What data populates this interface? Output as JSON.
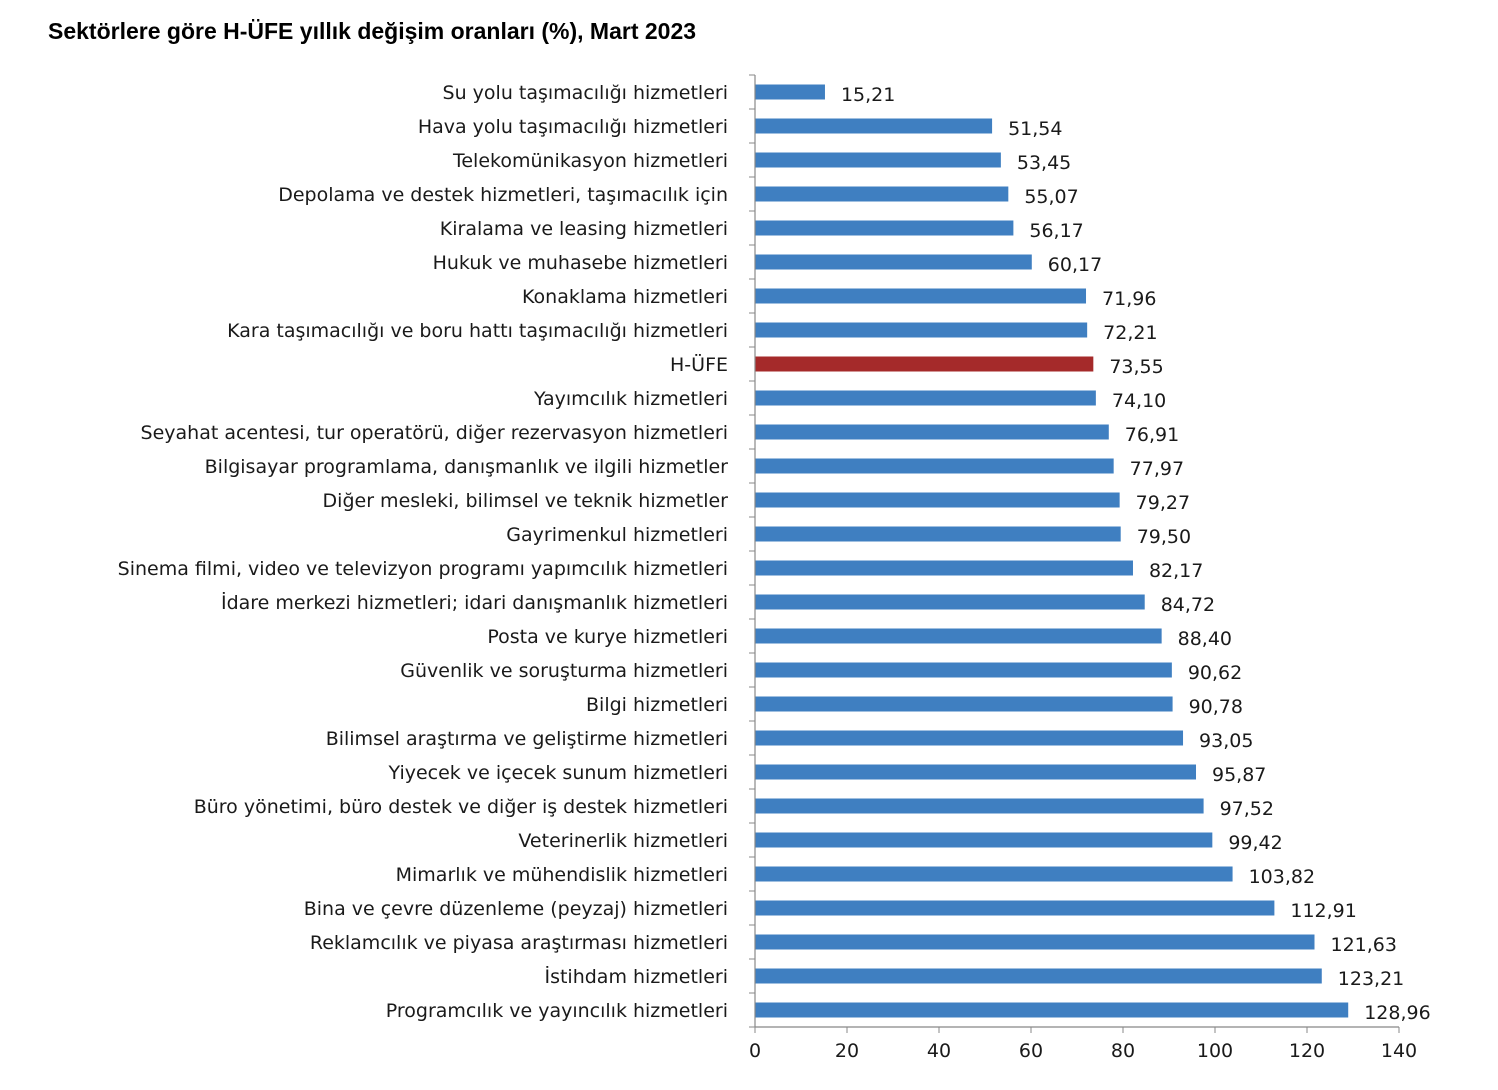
{
  "chart_data": {
    "type": "bar",
    "orientation": "horizontal",
    "title": "Sektörlere göre H-ÜFE yıllık değişim oranları (%), Mart 2023",
    "categories": [
      "Su yolu taşımacılığı hizmetleri",
      "Hava yolu taşımacılığı hizmetleri",
      "Telekomünikasyon hizmetleri",
      "Depolama ve destek hizmetleri, taşımacılık için",
      "Kiralama ve leasing hizmetleri",
      "Hukuk ve muhasebe hizmetleri",
      "Konaklama hizmetleri",
      "Kara taşımacılığı ve boru hattı taşımacılığı hizmetleri",
      "H-ÜFE",
      "Yayımcılık hizmetleri",
      "Seyahat acentesi, tur operatörü, diğer rezervasyon hizmetleri",
      "Bilgisayar programlama, danışmanlık ve ilgili hizmetler",
      "Diğer mesleki, bilimsel ve teknik hizmetler",
      "Gayrimenkul hizmetleri",
      "Sinema filmi, video ve televizyon programı yapımcılık hizmetleri",
      "İdare merkezi hizmetleri; idari danışmanlık hizmetleri",
      "Posta ve kurye hizmetleri",
      "Güvenlik ve soruşturma hizmetleri",
      "Bilgi hizmetleri",
      "Bilimsel araştırma ve geliştirme hizmetleri",
      "Yiyecek ve içecek sunum hizmetleri",
      "Büro yönetimi, büro destek ve diğer iş destek hizmetleri",
      "Veterinerlik hizmetleri",
      "Mimarlık ve mühendislik hizmetleri",
      "Bina ve çevre düzenleme (peyzaj) hizmetleri",
      "Reklamcılık ve piyasa araştırması hizmetleri",
      "İstihdam hizmetleri",
      "Programcılık ve yayıncılık hizmetleri"
    ],
    "values": [
      15.21,
      51.54,
      53.45,
      55.07,
      56.17,
      60.17,
      71.96,
      72.21,
      73.55,
      74.1,
      76.91,
      77.97,
      79.27,
      79.5,
      82.17,
      84.72,
      88.4,
      90.62,
      90.78,
      93.05,
      95.87,
      97.52,
      99.42,
      103.82,
      112.91,
      121.63,
      123.21,
      128.96
    ],
    "value_labels": [
      "15,21",
      "51,54",
      "53,45",
      "55,07",
      "56,17",
      "60,17",
      "71,96",
      "72,21",
      "73,55",
      "74,10",
      "76,91",
      "77,97",
      "79,27",
      "79,50",
      "82,17",
      "84,72",
      "88,40",
      "90,62",
      "90,78",
      "93,05",
      "95,87",
      "97,52",
      "99,42",
      "103,82",
      "112,91",
      "121,63",
      "123,21",
      "128,96"
    ],
    "highlight_category": "H-ÜFE",
    "xlim": [
      0,
      140
    ],
    "xticks": [
      "0",
      "20",
      "40",
      "60",
      "80",
      "100",
      "120",
      "140"
    ],
    "xtick_values": [
      0,
      20,
      40,
      60,
      80,
      100,
      120,
      140
    ],
    "xlabel": "",
    "ylabel": "",
    "grid": false,
    "legend": "none",
    "colors": {
      "bar": "#3f7fc1",
      "highlight": "#a52a2a",
      "axis": "#888888",
      "text": "#1a1a1a"
    }
  }
}
